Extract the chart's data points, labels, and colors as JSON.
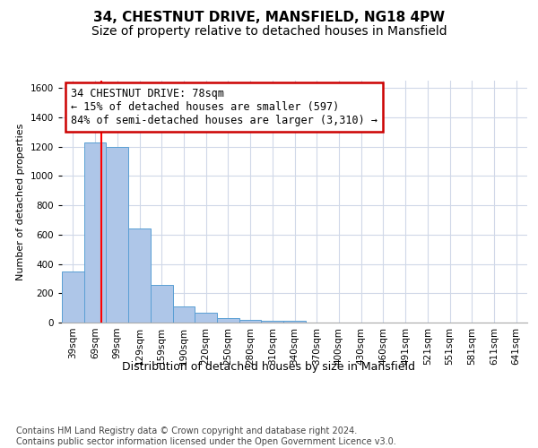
{
  "title": "34, CHESTNUT DRIVE, MANSFIELD, NG18 4PW",
  "subtitle": "Size of property relative to detached houses in Mansfield",
  "xlabel": "Distribution of detached houses by size in Mansfield",
  "ylabel": "Number of detached properties",
  "categories": [
    "39sqm",
    "69sqm",
    "99sqm",
    "129sqm",
    "159sqm",
    "190sqm",
    "220sqm",
    "250sqm",
    "280sqm",
    "310sqm",
    "340sqm",
    "370sqm",
    "400sqm",
    "430sqm",
    "460sqm",
    "491sqm",
    "521sqm",
    "551sqm",
    "581sqm",
    "611sqm",
    "641sqm"
  ],
  "values": [
    350,
    1230,
    1195,
    640,
    255,
    110,
    65,
    30,
    20,
    15,
    10,
    0,
    0,
    0,
    0,
    0,
    0,
    0,
    0,
    0,
    0
  ],
  "bar_color": "#aec6e8",
  "bar_edge_color": "#5a9fd4",
  "grid_color": "#d0d8e8",
  "background_color": "#ffffff",
  "ylim": [
    0,
    1650
  ],
  "yticks": [
    0,
    200,
    400,
    600,
    800,
    1000,
    1200,
    1400,
    1600
  ],
  "red_line_x": 1.3,
  "annotation_text": "34 CHESTNUT DRIVE: 78sqm\n← 15% of detached houses are smaller (597)\n84% of semi-detached houses are larger (3,310) →",
  "annotation_box_color": "#cc0000",
  "footer_text": "Contains HM Land Registry data © Crown copyright and database right 2024.\nContains public sector information licensed under the Open Government Licence v3.0.",
  "title_fontsize": 11,
  "subtitle_fontsize": 10,
  "annotation_fontsize": 8.5,
  "footer_fontsize": 7,
  "ylabel_fontsize": 8,
  "xlabel_fontsize": 9,
  "tick_fontsize": 7.5
}
